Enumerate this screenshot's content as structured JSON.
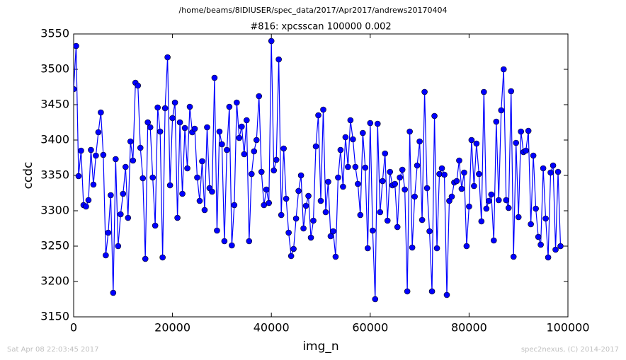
{
  "header": "/home/beams/8IDIUSER/spec_data/2017/Apr2017/andrews20170404",
  "footer_left": "Sat Apr 08 22:03:45 2017",
  "footer_right": "spec2nexus, (C) 2014-2017",
  "chart_data": {
    "type": "line",
    "title": "#816: xpcsscan 100000 0.002",
    "x_label": "img_n",
    "y_label": "ccdc",
    "xlim": [
      0,
      100000
    ],
    "ylim": [
      3150,
      3550
    ],
    "xticks": [
      0,
      20000,
      40000,
      60000,
      80000,
      100000
    ],
    "yticks": [
      3150,
      3200,
      3250,
      3300,
      3350,
      3400,
      3450,
      3500,
      3550
    ],
    "grid": false,
    "series": [
      {
        "name": "ccdc",
        "color": "#0000ff",
        "x": [
          0,
          500,
          1000,
          1500,
          2000,
          2500,
          3000,
          3500,
          4000,
          4500,
          5000,
          5500,
          6000,
          6500,
          7000,
          7500,
          8000,
          8500,
          9000,
          9500,
          10000,
          10500,
          11000,
          11500,
          12000,
          12500,
          13000,
          13500,
          14000,
          14500,
          15000,
          15500,
          16000,
          16500,
          17000,
          17500,
          18000,
          18500,
          19000,
          19500,
          20000,
          20500,
          21000,
          21500,
          22000,
          22500,
          23000,
          23500,
          24000,
          24500,
          25000,
          25500,
          26000,
          26500,
          27000,
          27500,
          28000,
          28500,
          29000,
          29500,
          30000,
          30500,
          31000,
          31500,
          32000,
          32500,
          33000,
          33500,
          34000,
          34500,
          35000,
          35500,
          36000,
          36500,
          37000,
          37500,
          38000,
          38500,
          39000,
          39500,
          40000,
          40500,
          41000,
          41500,
          42000,
          42500,
          43000,
          43500,
          44000,
          44500,
          45000,
          45500,
          46000,
          46500,
          47000,
          47500,
          48000,
          48500,
          49000,
          49500,
          50000,
          50500,
          51000,
          51500,
          52000,
          52500,
          53000,
          53500,
          54000,
          54500,
          55000,
          55500,
          56000,
          56500,
          57000,
          57500,
          58000,
          58500,
          59000,
          59500,
          60000,
          60500,
          61000,
          61500,
          62000,
          62500,
          63000,
          63500,
          64000,
          64500,
          65000,
          65500,
          66000,
          66500,
          67000,
          67500,
          68000,
          68500,
          69000,
          69500,
          70000,
          70500,
          71000,
          71500,
          72000,
          72500,
          73000,
          73500,
          74000,
          74500,
          75000,
          75500,
          76000,
          76500,
          77000,
          77500,
          78000,
          78500,
          79000,
          79500,
          80000,
          80500,
          81000,
          81500,
          82000,
          82500,
          83000,
          83500,
          84000,
          84500,
          85000,
          85500,
          86000,
          86500,
          87000,
          87500,
          88000,
          88500,
          89000,
          89500,
          90000,
          90500,
          91000,
          91500,
          92000,
          92500,
          93000,
          93500,
          94000,
          94500,
          95000,
          95500,
          96000,
          96500,
          97000,
          97500,
          98000,
          98500
        ],
        "values": [
          3472,
          3533,
          3349,
          3385,
          3308,
          3306,
          3315,
          3386,
          3337,
          3378,
          3411,
          3439,
          3379,
          3237,
          3269,
          3322,
          3184,
          3373,
          3250,
          3295,
          3324,
          3362,
          3290,
          3398,
          3371,
          3481,
          3477,
          3389,
          3346,
          3232,
          3425,
          3418,
          3347,
          3279,
          3446,
          3412,
          3234,
          3445,
          3517,
          3336,
          3431,
          3453,
          3290,
          3425,
          3324,
          3417,
          3360,
          3447,
          3411,
          3416,
          3347,
          3314,
          3370,
          3301,
          3418,
          3332,
          3327,
          3488,
          3272,
          3412,
          3394,
          3257,
          3386,
          3447,
          3251,
          3308,
          3453,
          3403,
          3419,
          3380,
          3428,
          3257,
          3352,
          3384,
          3400,
          3462,
          3355,
          3308,
          3330,
          3311,
          3540,
          3357,
          3372,
          3514,
          3294,
          3388,
          3317,
          3269,
          3236,
          3246,
          3289,
          3328,
          3350,
          3275,
          3307,
          3321,
          3262,
          3286,
          3391,
          3435,
          3314,
          3443,
          3298,
          3341,
          3264,
          3271,
          3235,
          3347,
          3386,
          3334,
          3404,
          3362,
          3428,
          3401,
          3362,
          3338,
          3294,
          3410,
          3361,
          3247,
          3424,
          3272,
          3175,
          3423,
          3298,
          3342,
          3381,
          3286,
          3355,
          3336,
          3338,
          3277,
          3347,
          3358,
          3330,
          3186,
          3412,
          3248,
          3320,
          3364,
          3398,
          3287,
          3468,
          3332,
          3271,
          3186,
          3434,
          3247,
          3352,
          3360,
          3351,
          3181,
          3314,
          3320,
          3340,
          3342,
          3371,
          3331,
          3354,
          3250,
          3306,
          3400,
          3335,
          3395,
          3352,
          3285,
          3468,
          3303,
          3314,
          3323,
          3258,
          3426,
          3315,
          3442,
          3500,
          3315,
          3304,
          3469,
          3235,
          3396,
          3291,
          3412,
          3383,
          3385,
          3413,
          3281,
          3378,
          3303,
          3263,
          3252,
          3360,
          3289,
          3234,
          3354,
          3364,
          3245,
          3355,
          3250
        ]
      }
    ]
  }
}
